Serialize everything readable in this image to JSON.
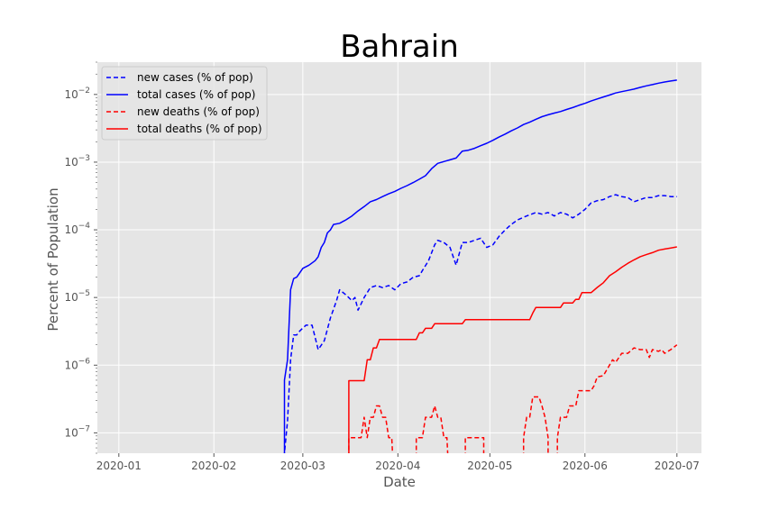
{
  "chart_data": {
    "type": "line",
    "title": "Bahrain",
    "xlabel": "Date",
    "ylabel": "Percent of Population",
    "yscale": "log",
    "ylim": [
      5e-08,
      0.03
    ],
    "xlim": [
      -7,
      190
    ],
    "grid": true,
    "legend_position": "top-left",
    "x_ticks": [
      {
        "day": 0,
        "label": "2020-01"
      },
      {
        "day": 31,
        "label": "2020-02"
      },
      {
        "day": 60,
        "label": "2020-03"
      },
      {
        "day": 91,
        "label": "2020-04"
      },
      {
        "day": 121,
        "label": "2020-05"
      },
      {
        "day": 152,
        "label": "2020-06"
      },
      {
        "day": 182,
        "label": "2020-07"
      }
    ],
    "y_ticks": [
      {
        "value": 1e-07,
        "base": "10",
        "exp": "−7"
      },
      {
        "value": 1e-06,
        "base": "10",
        "exp": "−6"
      },
      {
        "value": 1e-05,
        "base": "10",
        "exp": "−5"
      },
      {
        "value": 0.0001,
        "base": "10",
        "exp": "−4"
      },
      {
        "value": 0.001,
        "base": "10",
        "exp": "−3"
      },
      {
        "value": 0.01,
        "base": "10",
        "exp": "−2"
      }
    ],
    "x_unit": "days since 2020-01-01",
    "series": [
      {
        "name": "new cases (% of pop)",
        "color": "#0000ff",
        "dash": true,
        "points": [
          [
            54,
            1e-08
          ],
          [
            54,
            5e-08
          ],
          [
            55,
            1.5e-07
          ],
          [
            56,
            1.2e-06
          ],
          [
            57,
            2.8e-06
          ],
          [
            58,
            2.8e-06
          ],
          [
            59,
            3.2e-06
          ],
          [
            61,
            3.9e-06
          ],
          [
            63,
            3.9e-06
          ],
          [
            65,
            1.7e-06
          ],
          [
            67,
            2.3e-06
          ],
          [
            69,
            5e-06
          ],
          [
            71,
            9e-06
          ],
          [
            72,
            1.3e-05
          ],
          [
            74,
            1.1e-05
          ],
          [
            76,
            9e-06
          ],
          [
            77,
            1e-05
          ],
          [
            78,
            6.5e-06
          ],
          [
            80,
            1e-05
          ],
          [
            82,
            1.4e-05
          ],
          [
            84,
            1.5e-05
          ],
          [
            86,
            1.4e-05
          ],
          [
            88,
            1.5e-05
          ],
          [
            90,
            1.3e-05
          ],
          [
            92,
            1.6e-05
          ],
          [
            94,
            1.7e-05
          ],
          [
            96,
            2e-05
          ],
          [
            98,
            2.1e-05
          ],
          [
            99,
            2.5e-05
          ],
          [
            101,
            3.5e-05
          ],
          [
            103,
            6e-05
          ],
          [
            104,
            7e-05
          ],
          [
            106,
            6.5e-05
          ],
          [
            108,
            5.5e-05
          ],
          [
            110,
            3e-05
          ],
          [
            112,
            6.5e-05
          ],
          [
            114,
            6.5e-05
          ],
          [
            116,
            7e-05
          ],
          [
            118,
            7.5e-05
          ],
          [
            120,
            5.5e-05
          ],
          [
            122,
            6e-05
          ],
          [
            124,
            8e-05
          ],
          [
            126,
            0.0001
          ],
          [
            128,
            0.00012
          ],
          [
            130,
            0.00014
          ],
          [
            133,
            0.00016
          ],
          [
            136,
            0.00018
          ],
          [
            138,
            0.00017
          ],
          [
            140,
            0.00018
          ],
          [
            142,
            0.00016
          ],
          [
            144,
            0.00018
          ],
          [
            146,
            0.00017
          ],
          [
            148,
            0.00015
          ],
          [
            150,
            0.00017
          ],
          [
            152,
            0.0002
          ],
          [
            154,
            0.00025
          ],
          [
            156,
            0.00027
          ],
          [
            158,
            0.00028
          ],
          [
            160,
            0.00031
          ],
          [
            162,
            0.00033
          ],
          [
            164,
            0.00031
          ],
          [
            166,
            0.0003
          ],
          [
            168,
            0.00026
          ],
          [
            170,
            0.00028
          ],
          [
            172,
            0.0003
          ],
          [
            174,
            0.0003
          ],
          [
            176,
            0.00032
          ],
          [
            178,
            0.00032
          ],
          [
            180,
            0.00031
          ],
          [
            182,
            0.00031
          ]
        ]
      },
      {
        "name": "total cases (% of pop)",
        "color": "#0000ff",
        "dash": false,
        "points": [
          [
            54,
            1e-08
          ],
          [
            54,
            6e-07
          ],
          [
            55,
            1.2e-06
          ],
          [
            56,
            1.3e-05
          ],
          [
            57,
            1.9e-05
          ],
          [
            58,
            2e-05
          ],
          [
            60,
            2.7e-05
          ],
          [
            62,
            3e-05
          ],
          [
            64,
            3.5e-05
          ],
          [
            65,
            4e-05
          ],
          [
            66,
            5.5e-05
          ],
          [
            67,
            6.5e-05
          ],
          [
            68,
            9e-05
          ],
          [
            69,
            0.0001
          ],
          [
            70,
            0.00012
          ],
          [
            72,
            0.000125
          ],
          [
            74,
            0.00014
          ],
          [
            76,
            0.00016
          ],
          [
            78,
            0.00019
          ],
          [
            80,
            0.00022
          ],
          [
            82,
            0.00026
          ],
          [
            84,
            0.00028
          ],
          [
            86,
            0.00031
          ],
          [
            88,
            0.00034
          ],
          [
            90,
            0.00037
          ],
          [
            92,
            0.00041
          ],
          [
            94,
            0.00045
          ],
          [
            96,
            0.0005
          ],
          [
            98,
            0.00056
          ],
          [
            100,
            0.00063
          ],
          [
            102,
            0.0008
          ],
          [
            104,
            0.00096
          ],
          [
            106,
            0.00102
          ],
          [
            108,
            0.00108
          ],
          [
            110,
            0.00115
          ],
          [
            112,
            0.00145
          ],
          [
            114,
            0.0015
          ],
          [
            116,
            0.0016
          ],
          [
            118,
            0.00175
          ],
          [
            120,
            0.0019
          ],
          [
            122,
            0.0021
          ],
          [
            124,
            0.00235
          ],
          [
            126,
            0.0026
          ],
          [
            128,
            0.0029
          ],
          [
            130,
            0.0032
          ],
          [
            132,
            0.0036
          ],
          [
            134,
            0.0039
          ],
          [
            136,
            0.0043
          ],
          [
            138,
            0.0047
          ],
          [
            140,
            0.005
          ],
          [
            142,
            0.0053
          ],
          [
            144,
            0.0056
          ],
          [
            146,
            0.006
          ],
          [
            148,
            0.0064
          ],
          [
            150,
            0.0069
          ],
          [
            152,
            0.0074
          ],
          [
            154,
            0.008
          ],
          [
            156,
            0.0086
          ],
          [
            158,
            0.0092
          ],
          [
            160,
            0.0098
          ],
          [
            162,
            0.0105
          ],
          [
            164,
            0.011
          ],
          [
            166,
            0.0115
          ],
          [
            168,
            0.012
          ],
          [
            170,
            0.0127
          ],
          [
            172,
            0.0134
          ],
          [
            174,
            0.014
          ],
          [
            176,
            0.0147
          ],
          [
            178,
            0.0153
          ],
          [
            180,
            0.0158
          ],
          [
            182,
            0.0163
          ]
        ]
      },
      {
        "name": "new deaths (% of pop)",
        "color": "#ff0000",
        "dash": true,
        "segments": [
          [
            [
              75,
              1e-08
            ],
            [
              75,
              8.5e-08
            ],
            [
              77,
              8.5e-08
            ],
            [
              79,
              8.5e-08
            ],
            [
              80,
              1.7e-07
            ],
            [
              81,
              8.5e-08
            ],
            [
              82,
              1.7e-07
            ],
            [
              83,
              1.7e-07
            ],
            [
              84,
              2.5e-07
            ],
            [
              85,
              2.5e-07
            ],
            [
              86,
              1.7e-07
            ],
            [
              87,
              1.7e-07
            ],
            [
              88,
              8.5e-08
            ],
            [
              89,
              8.5e-08
            ],
            [
              90,
              1e-08
            ]
          ],
          [
            [
              97,
              1e-08
            ],
            [
              97,
              8.5e-08
            ],
            [
              99,
              8.5e-08
            ],
            [
              100,
              1.7e-07
            ],
            [
              101,
              1.7e-07
            ],
            [
              102,
              1.7e-07
            ],
            [
              103,
              2.5e-07
            ],
            [
              104,
              1.7e-07
            ],
            [
              105,
              1.7e-07
            ],
            [
              106,
              8.5e-08
            ],
            [
              107,
              8.5e-08
            ],
            [
              108,
              1e-08
            ]
          ],
          [
            [
              113,
              1e-08
            ],
            [
              113,
              8.5e-08
            ],
            [
              115,
              8.5e-08
            ],
            [
              117,
              8.5e-08
            ],
            [
              119,
              8.5e-08
            ],
            [
              119,
              1e-08
            ]
          ],
          [
            [
              132,
              1e-08
            ],
            [
              132,
              8.5e-08
            ],
            [
              133,
              1.7e-07
            ],
            [
              134,
              1.7e-07
            ],
            [
              135,
              3.4e-07
            ],
            [
              137,
              3.4e-07
            ],
            [
              138,
              2.5e-07
            ],
            [
              139,
              1.7e-07
            ],
            [
              140,
              8.5e-08
            ],
            [
              140,
              1e-08
            ]
          ],
          [
            [
              143,
              1e-08
            ],
            [
              143,
              8.5e-08
            ],
            [
              144,
              1.7e-07
            ],
            [
              146,
              1.7e-07
            ],
            [
              147,
              2.5e-07
            ],
            [
              148,
              2.5e-07
            ],
            [
              149,
              2.5e-07
            ],
            [
              150,
              4.2e-07
            ],
            [
              152,
              4.2e-07
            ],
            [
              154,
              4.2e-07
            ],
            [
              155,
              5e-07
            ],
            [
              156,
              6.7e-07
            ],
            [
              158,
              7e-07
            ],
            [
              160,
              1e-06
            ],
            [
              161,
              1.2e-06
            ],
            [
              162,
              1.1e-06
            ],
            [
              164,
              1.5e-06
            ],
            [
              166,
              1.5e-06
            ],
            [
              168,
              1.8e-06
            ],
            [
              170,
              1.7e-06
            ],
            [
              172,
              1.7e-06
            ],
            [
              173,
              1.3e-06
            ],
            [
              174,
              1.7e-06
            ],
            [
              176,
              1.6e-06
            ],
            [
              177,
              1.7e-06
            ],
            [
              178,
              1.5e-06
            ],
            [
              180,
              1.7e-06
            ],
            [
              182,
              2e-06
            ]
          ]
        ]
      },
      {
        "name": "total deaths (% of pop)",
        "color": "#ff0000",
        "dash": false,
        "points": [
          [
            75,
            1e-08
          ],
          [
            75,
            5.9e-07
          ],
          [
            80,
            5.9e-07
          ],
          [
            81,
            1.2e-06
          ],
          [
            82,
            1.2e-06
          ],
          [
            83,
            1.8e-06
          ],
          [
            84,
            1.8e-06
          ],
          [
            85,
            2.4e-06
          ],
          [
            97,
            2.4e-06
          ],
          [
            98,
            3e-06
          ],
          [
            99,
            3e-06
          ],
          [
            100,
            3.5e-06
          ],
          [
            102,
            3.5e-06
          ],
          [
            103,
            4.1e-06
          ],
          [
            112,
            4.1e-06
          ],
          [
            113,
            4.7e-06
          ],
          [
            134,
            4.7e-06
          ],
          [
            135,
            5.9e-06
          ],
          [
            136,
            7.1e-06
          ],
          [
            144,
            7.1e-06
          ],
          [
            145,
            8.3e-06
          ],
          [
            148,
            8.3e-06
          ],
          [
            149,
            9.4e-06
          ],
          [
            150,
            9.4e-06
          ],
          [
            151,
            1.18e-05
          ],
          [
            154,
            1.18e-05
          ],
          [
            156,
            1.41e-05
          ],
          [
            158,
            1.65e-05
          ],
          [
            160,
            2.1e-05
          ],
          [
            162,
            2.4e-05
          ],
          [
            164,
            2.8e-05
          ],
          [
            166,
            3.2e-05
          ],
          [
            168,
            3.6e-05
          ],
          [
            170,
            4e-05
          ],
          [
            172,
            4.3e-05
          ],
          [
            174,
            4.6e-05
          ],
          [
            176,
            5e-05
          ],
          [
            178,
            5.2e-05
          ],
          [
            180,
            5.4e-05
          ],
          [
            182,
            5.6e-05
          ]
        ]
      }
    ]
  }
}
